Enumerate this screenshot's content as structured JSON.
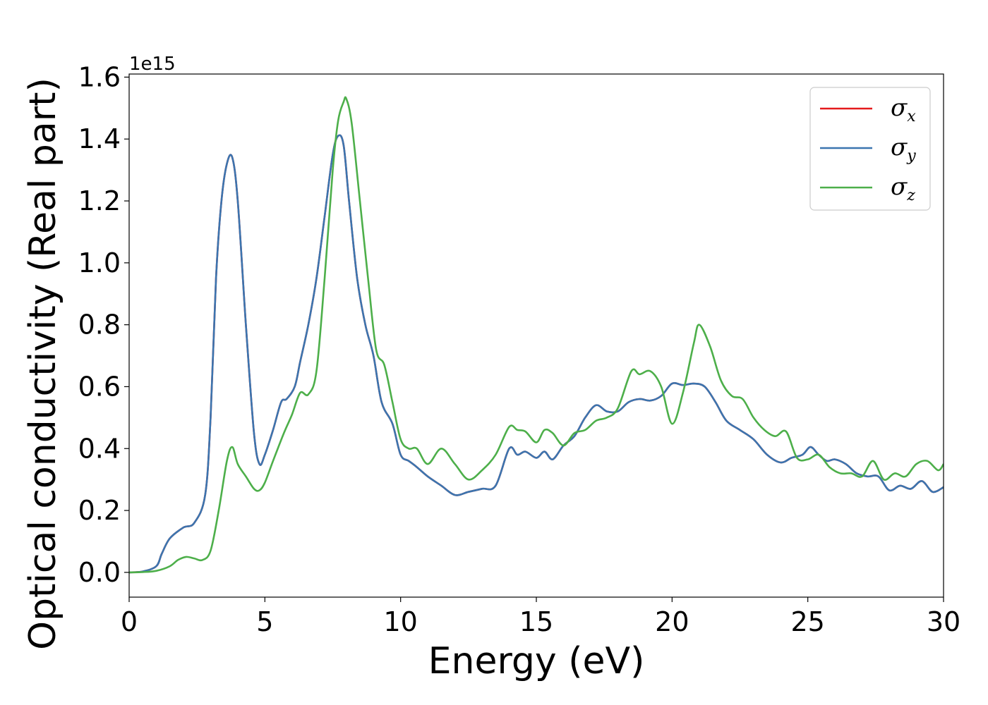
{
  "chart_data": {
    "type": "line",
    "title": "",
    "xlabel": "Energy (eV)",
    "ylabel": "Optical conductivity (Real part)",
    "y_offset_text": "1e15",
    "xlim": [
      0,
      30
    ],
    "ylim": [
      -0.08,
      1.61
    ],
    "x_ticks": [
      0,
      5,
      10,
      15,
      20,
      25,
      30
    ],
    "y_ticks": [
      0.0,
      0.2,
      0.4,
      0.6,
      0.8,
      1.0,
      1.2,
      1.4,
      1.6
    ],
    "x_tick_labels": [
      "0",
      "5",
      "10",
      "15",
      "20",
      "25",
      "30"
    ],
    "y_tick_labels": [
      "0.0",
      "0.2",
      "0.4",
      "0.6",
      "0.8",
      "1.0",
      "1.2",
      "1.4",
      "1.6"
    ],
    "grid": false,
    "legend_position": "top-right",
    "series": [
      {
        "name": "σx",
        "symbol": "σ",
        "subscript": "x",
        "color": "#e41a1c",
        "x": [
          0,
          0.5,
          1.0,
          1.2,
          1.5,
          2.0,
          2.4,
          2.8,
          3.0,
          3.2,
          3.4,
          3.6,
          3.8,
          4.0,
          4.3,
          4.6,
          4.8,
          5.0,
          5.3,
          5.6,
          5.8,
          6.1,
          6.3,
          6.6,
          6.9,
          7.2,
          7.5,
          7.7,
          7.9,
          8.1,
          8.4,
          8.7,
          9.0,
          9.3,
          9.7,
          10.0,
          10.3,
          10.6,
          11.0,
          11.5,
          12.0,
          12.5,
          13.0,
          13.5,
          14.0,
          14.3,
          14.6,
          15.0,
          15.3,
          15.6,
          16.0,
          16.4,
          16.8,
          17.2,
          17.6,
          18.0,
          18.4,
          18.8,
          19.2,
          19.6,
          20.0,
          20.4,
          20.8,
          21.2,
          21.6,
          22.0,
          22.5,
          23.0,
          23.5,
          24.0,
          24.4,
          24.8,
          25.1,
          25.4,
          25.7,
          26.0,
          26.4,
          26.8,
          27.2,
          27.6,
          28.0,
          28.4,
          28.8,
          29.2,
          29.6,
          30.0
        ],
        "y": [
          0.0,
          0.003,
          0.02,
          0.06,
          0.11,
          0.145,
          0.16,
          0.25,
          0.5,
          0.95,
          1.2,
          1.32,
          1.34,
          1.2,
          0.8,
          0.45,
          0.35,
          0.38,
          0.46,
          0.55,
          0.56,
          0.6,
          0.68,
          0.8,
          0.95,
          1.15,
          1.35,
          1.41,
          1.38,
          1.2,
          0.95,
          0.8,
          0.7,
          0.55,
          0.48,
          0.38,
          0.36,
          0.34,
          0.31,
          0.28,
          0.25,
          0.26,
          0.27,
          0.28,
          0.4,
          0.38,
          0.39,
          0.37,
          0.39,
          0.365,
          0.41,
          0.44,
          0.5,
          0.54,
          0.52,
          0.52,
          0.55,
          0.56,
          0.555,
          0.57,
          0.61,
          0.605,
          0.61,
          0.6,
          0.55,
          0.49,
          0.46,
          0.43,
          0.38,
          0.355,
          0.37,
          0.38,
          0.405,
          0.38,
          0.36,
          0.365,
          0.35,
          0.32,
          0.31,
          0.31,
          0.265,
          0.28,
          0.27,
          0.295,
          0.26,
          0.275
        ]
      },
      {
        "name": "σy",
        "symbol": "σ",
        "subscript": "y",
        "color": "#3b75af",
        "x": [
          0,
          0.5,
          1.0,
          1.2,
          1.5,
          2.0,
          2.4,
          2.8,
          3.0,
          3.2,
          3.4,
          3.6,
          3.8,
          4.0,
          4.3,
          4.6,
          4.8,
          5.0,
          5.3,
          5.6,
          5.8,
          6.1,
          6.3,
          6.6,
          6.9,
          7.2,
          7.5,
          7.7,
          7.9,
          8.1,
          8.4,
          8.7,
          9.0,
          9.3,
          9.7,
          10.0,
          10.3,
          10.6,
          11.0,
          11.5,
          12.0,
          12.5,
          13.0,
          13.5,
          14.0,
          14.3,
          14.6,
          15.0,
          15.3,
          15.6,
          16.0,
          16.4,
          16.8,
          17.2,
          17.6,
          18.0,
          18.4,
          18.8,
          19.2,
          19.6,
          20.0,
          20.4,
          20.8,
          21.2,
          21.6,
          22.0,
          22.5,
          23.0,
          23.5,
          24.0,
          24.4,
          24.8,
          25.1,
          25.4,
          25.7,
          26.0,
          26.4,
          26.8,
          27.2,
          27.6,
          28.0,
          28.4,
          28.8,
          29.2,
          29.6,
          30.0
        ],
        "y": [
          0.0,
          0.003,
          0.02,
          0.06,
          0.11,
          0.145,
          0.16,
          0.25,
          0.5,
          0.95,
          1.2,
          1.32,
          1.34,
          1.2,
          0.8,
          0.45,
          0.35,
          0.38,
          0.46,
          0.55,
          0.56,
          0.6,
          0.68,
          0.8,
          0.95,
          1.15,
          1.35,
          1.41,
          1.38,
          1.2,
          0.95,
          0.8,
          0.7,
          0.55,
          0.48,
          0.38,
          0.36,
          0.34,
          0.31,
          0.28,
          0.25,
          0.26,
          0.27,
          0.28,
          0.4,
          0.38,
          0.39,
          0.37,
          0.39,
          0.365,
          0.41,
          0.44,
          0.5,
          0.54,
          0.52,
          0.52,
          0.55,
          0.56,
          0.555,
          0.57,
          0.61,
          0.605,
          0.61,
          0.6,
          0.55,
          0.49,
          0.46,
          0.43,
          0.38,
          0.355,
          0.37,
          0.38,
          0.405,
          0.38,
          0.36,
          0.365,
          0.35,
          0.32,
          0.31,
          0.31,
          0.265,
          0.28,
          0.27,
          0.295,
          0.26,
          0.275
        ]
      },
      {
        "name": "σz",
        "symbol": "σ",
        "subscript": "z",
        "color": "#4daf4a",
        "x": [
          0,
          0.5,
          1.0,
          1.5,
          1.8,
          2.1,
          2.4,
          2.7,
          3.0,
          3.3,
          3.6,
          3.8,
          4.0,
          4.3,
          4.6,
          4.8,
          5.0,
          5.3,
          5.7,
          6.0,
          6.3,
          6.6,
          6.9,
          7.2,
          7.5,
          7.7,
          7.9,
          8.0,
          8.2,
          8.5,
          8.8,
          9.1,
          9.4,
          9.7,
          10.0,
          10.3,
          10.6,
          11.0,
          11.5,
          12.0,
          12.5,
          13.0,
          13.5,
          14.0,
          14.3,
          14.6,
          15.0,
          15.3,
          15.6,
          16.0,
          16.4,
          16.8,
          17.2,
          17.6,
          18.0,
          18.5,
          18.8,
          19.2,
          19.6,
          20.0,
          20.4,
          20.8,
          21.0,
          21.4,
          21.8,
          22.2,
          22.6,
          23.0,
          23.4,
          23.8,
          24.2,
          24.6,
          25.0,
          25.4,
          25.8,
          26.2,
          26.6,
          27.0,
          27.4,
          27.8,
          28.2,
          28.6,
          29.0,
          29.4,
          29.8,
          30.0
        ],
        "y": [
          0.0,
          0.001,
          0.005,
          0.02,
          0.04,
          0.05,
          0.045,
          0.04,
          0.07,
          0.2,
          0.36,
          0.405,
          0.35,
          0.31,
          0.27,
          0.265,
          0.29,
          0.36,
          0.45,
          0.51,
          0.58,
          0.575,
          0.65,
          0.95,
          1.3,
          1.46,
          1.52,
          1.53,
          1.45,
          1.2,
          0.95,
          0.72,
          0.67,
          0.55,
          0.43,
          0.4,
          0.4,
          0.35,
          0.4,
          0.35,
          0.3,
          0.33,
          0.38,
          0.47,
          0.46,
          0.455,
          0.42,
          0.46,
          0.45,
          0.41,
          0.45,
          0.46,
          0.49,
          0.5,
          0.53,
          0.65,
          0.64,
          0.65,
          0.6,
          0.48,
          0.58,
          0.74,
          0.8,
          0.73,
          0.62,
          0.57,
          0.56,
          0.5,
          0.46,
          0.44,
          0.455,
          0.37,
          0.365,
          0.38,
          0.34,
          0.32,
          0.32,
          0.31,
          0.36,
          0.3,
          0.32,
          0.31,
          0.35,
          0.36,
          0.33,
          0.35
        ]
      }
    ]
  }
}
